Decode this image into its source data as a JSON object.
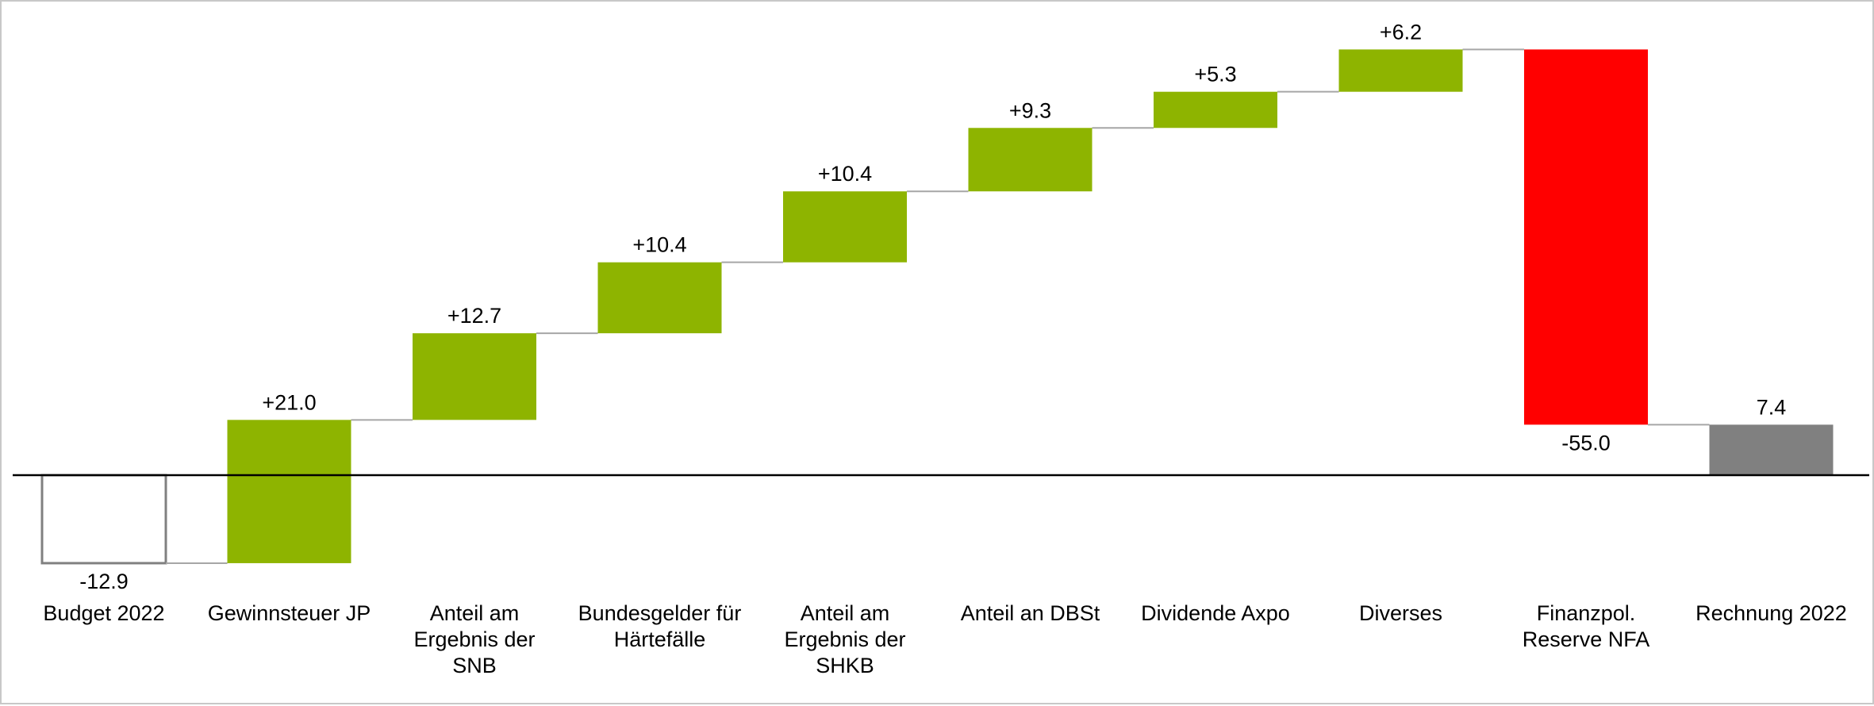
{
  "chart_data": {
    "type": "waterfall",
    "title": "",
    "xlabel": "",
    "ylabel": "",
    "ylim": [
      -20,
      60
    ],
    "grid": false,
    "colors": {
      "start": "#ffffff",
      "start_border": "#808080",
      "increase": "#8eb400",
      "decrease": "#ff0000",
      "total": "#808080",
      "connector": "#a6a6a6",
      "axis": "#000000"
    },
    "categories": [
      [
        "Budget 2022"
      ],
      [
        "Gewinnsteuer JP"
      ],
      [
        "Anteil am",
        "Ergebnis der",
        "SNB"
      ],
      [
        "Bundesgelder für",
        "Härtefälle"
      ],
      [
        "Anteil am",
        "Ergebnis der",
        "SHKB"
      ],
      [
        "Anteil an DBSt"
      ],
      [
        "Dividende Axpo"
      ],
      [
        "Diverses"
      ],
      [
        "Finanzpol.",
        "Reserve NFA"
      ],
      [
        "Rechnung 2022"
      ]
    ],
    "values": [
      -12.9,
      21.0,
      12.7,
      10.4,
      10.4,
      9.3,
      5.3,
      6.2,
      -55.0,
      7.4
    ],
    "kinds": [
      "start",
      "delta",
      "delta",
      "delta",
      "delta",
      "delta",
      "delta",
      "delta",
      "delta",
      "total"
    ],
    "data_labels": [
      "-12.9",
      "+21.0",
      "+12.7",
      "+10.4",
      "+10.4",
      "+9.3",
      "+5.3",
      "+6.2",
      "-55.0",
      "7.4"
    ]
  }
}
